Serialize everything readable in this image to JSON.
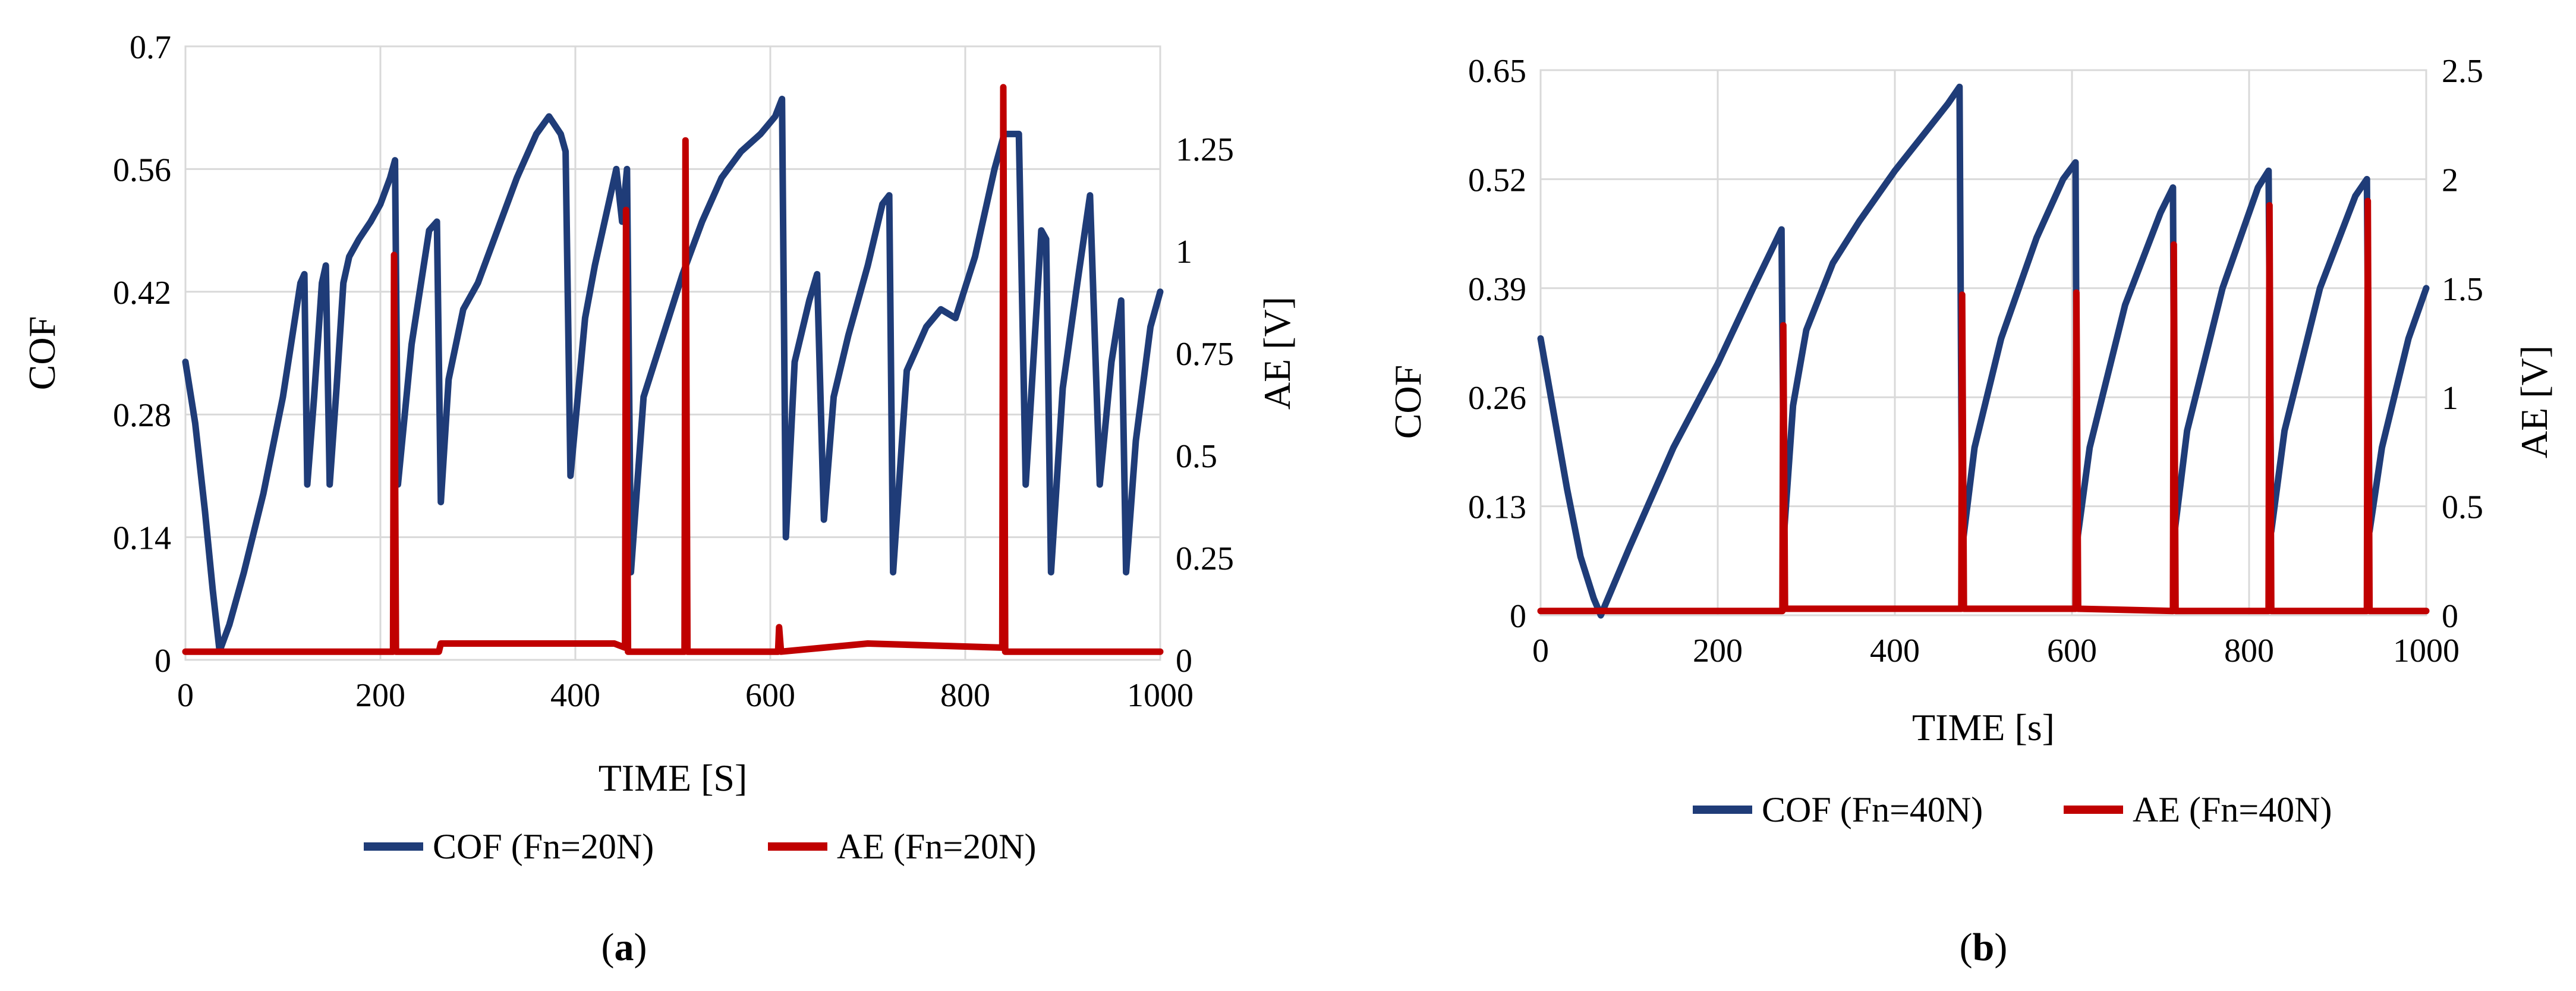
{
  "panels": [
    {
      "label_open": "(",
      "label_letter": "a",
      "label_close": ")"
    },
    {
      "label_open": "(",
      "label_letter": "b",
      "label_close": ")"
    }
  ],
  "chart_data": [
    {
      "type": "line",
      "title": "",
      "xlabel": "TIME [S]",
      "ylabel": "COF",
      "y2label": "AE [V]",
      "xlim": [
        0,
        1000
      ],
      "ylim": [
        0,
        0.7
      ],
      "y2lim": [
        0,
        1.5
      ],
      "xticks": [
        "0",
        "200",
        "400",
        "600",
        "800",
        "1000"
      ],
      "yticks": [
        "0",
        "0.14",
        "0.28",
        "0.42",
        "0.56",
        "0.7"
      ],
      "y2ticks": [
        "0",
        "0.25",
        "0.5",
        "0.75",
        "1",
        "1.25"
      ],
      "grid": true,
      "legend": "bottom",
      "series": [
        {
          "name": "COF (Fn=20N)",
          "axis": "left",
          "color": "#1f3c78",
          "points": [
            [
              0,
              0.34
            ],
            [
              10,
              0.27
            ],
            [
              20,
              0.17
            ],
            [
              28,
              0.08
            ],
            [
              35,
              0.01
            ],
            [
              45,
              0.04
            ],
            [
              60,
              0.1
            ],
            [
              80,
              0.19
            ],
            [
              100,
              0.3
            ],
            [
              118,
              0.43
            ],
            [
              122,
              0.44
            ],
            [
              125,
              0.2
            ],
            [
              132,
              0.3
            ],
            [
              140,
              0.43
            ],
            [
              144,
              0.45
            ],
            [
              148,
              0.2
            ],
            [
              155,
              0.31
            ],
            [
              162,
              0.43
            ],
            [
              168,
              0.46
            ],
            [
              178,
              0.48
            ],
            [
              190,
              0.5
            ],
            [
              200,
              0.52
            ],
            [
              210,
              0.55
            ],
            [
              215,
              0.57
            ],
            [
              218,
              0.2
            ],
            [
              232,
              0.36
            ],
            [
              250,
              0.49
            ],
            [
              258,
              0.5
            ],
            [
              262,
              0.18
            ],
            [
              270,
              0.32
            ],
            [
              285,
              0.4
            ],
            [
              300,
              0.43
            ],
            [
              320,
              0.49
            ],
            [
              340,
              0.55
            ],
            [
              360,
              0.6
            ],
            [
              373,
              0.62
            ],
            [
              385,
              0.6
            ],
            [
              390,
              0.58
            ],
            [
              395,
              0.21
            ],
            [
              410,
              0.39
            ],
            [
              420,
              0.45
            ],
            [
              432,
              0.51
            ],
            [
              442,
              0.56
            ],
            [
              448,
              0.5
            ],
            [
              453,
              0.56
            ],
            [
              457,
              0.1
            ],
            [
              470,
              0.3
            ],
            [
              490,
              0.37
            ],
            [
              510,
              0.44
            ],
            [
              530,
              0.5
            ],
            [
              550,
              0.55
            ],
            [
              570,
              0.58
            ],
            [
              590,
              0.6
            ],
            [
              605,
              0.62
            ],
            [
              612,
              0.64
            ],
            [
              616,
              0.14
            ],
            [
              625,
              0.34
            ],
            [
              640,
              0.41
            ],
            [
              648,
              0.44
            ],
            [
              655,
              0.16
            ],
            [
              665,
              0.3
            ],
            [
              680,
              0.37
            ],
            [
              700,
              0.45
            ],
            [
              715,
              0.52
            ],
            [
              722,
              0.53
            ],
            [
              726,
              0.1
            ],
            [
              740,
              0.33
            ],
            [
              760,
              0.38
            ],
            [
              775,
              0.4
            ],
            [
              790,
              0.39
            ],
            [
              810,
              0.46
            ],
            [
              830,
              0.56
            ],
            [
              840,
              0.6
            ],
            [
              848,
              0.6
            ],
            [
              855,
              0.6
            ],
            [
              862,
              0.2
            ],
            [
              872,
              0.38
            ],
            [
              878,
              0.49
            ],
            [
              883,
              0.48
            ],
            [
              888,
              0.1
            ],
            [
              900,
              0.31
            ],
            [
              915,
              0.43
            ],
            [
              928,
              0.53
            ],
            [
              938,
              0.2
            ],
            [
              950,
              0.34
            ],
            [
              960,
              0.41
            ],
            [
              965,
              0.1
            ],
            [
              975,
              0.25
            ],
            [
              990,
              0.38
            ],
            [
              1000,
              0.42
            ]
          ]
        },
        {
          "name": "AE (Fn=20N)",
          "axis": "right",
          "color": "#c00000",
          "points": [
            [
              0,
              0.02
            ],
            [
              100,
              0.02
            ],
            [
              213,
              0.02
            ],
            [
              214,
              0.99
            ],
            [
              216,
              0.02
            ],
            [
              260,
              0.02
            ],
            [
              262,
              0.04
            ],
            [
              440,
              0.04
            ],
            [
              451,
              0.03
            ],
            [
              452,
              1.1
            ],
            [
              454,
              0.02
            ],
            [
              512,
              0.02
            ],
            [
              513,
              1.27
            ],
            [
              515,
              0.02
            ],
            [
              608,
              0.02
            ],
            [
              609,
              0.08
            ],
            [
              611,
              0.02
            ],
            [
              700,
              0.04
            ],
            [
              838,
              0.03
            ],
            [
              839,
              1.4
            ],
            [
              841,
              0.02
            ],
            [
              1000,
              0.02
            ]
          ]
        }
      ]
    },
    {
      "type": "line",
      "title": "",
      "xlabel": "TIME [s]",
      "ylabel": "COF",
      "y2label": "AE [V]",
      "xlim": [
        0,
        1000
      ],
      "ylim": [
        0,
        0.65
      ],
      "y2lim": [
        0,
        2.5
      ],
      "xticks": [
        "0",
        "200",
        "400",
        "600",
        "800",
        "1000"
      ],
      "yticks": [
        "0",
        "0.13",
        "0.26",
        "0.39",
        "0.52",
        "0.65"
      ],
      "y2ticks": [
        "0",
        "0.5",
        "1",
        "1.5",
        "2",
        "2.5"
      ],
      "grid": true,
      "legend": "bottom",
      "series": [
        {
          "name": "COF (Fn=40N)",
          "axis": "left",
          "color": "#1f3c78",
          "points": [
            [
              0,
              0.33
            ],
            [
              15,
              0.24
            ],
            [
              30,
              0.15
            ],
            [
              45,
              0.07
            ],
            [
              60,
              0.02
            ],
            [
              68,
              0.0
            ],
            [
              80,
              0.03
            ],
            [
              100,
              0.08
            ],
            [
              150,
              0.2
            ],
            [
              200,
              0.3
            ],
            [
              240,
              0.39
            ],
            [
              272,
              0.46
            ],
            [
              275,
              0.1
            ],
            [
              285,
              0.25
            ],
            [
              300,
              0.34
            ],
            [
              330,
              0.42
            ],
            [
              360,
              0.47
            ],
            [
              400,
              0.53
            ],
            [
              430,
              0.57
            ],
            [
              460,
              0.61
            ],
            [
              473,
              0.63
            ],
            [
              476,
              0.08
            ],
            [
              490,
              0.2
            ],
            [
              520,
              0.33
            ],
            [
              560,
              0.45
            ],
            [
              590,
              0.52
            ],
            [
              604,
              0.54
            ],
            [
              606,
              0.09
            ],
            [
              620,
              0.2
            ],
            [
              660,
              0.37
            ],
            [
              700,
              0.48
            ],
            [
              714,
              0.51
            ],
            [
              716,
              0.1
            ],
            [
              730,
              0.22
            ],
            [
              770,
              0.39
            ],
            [
              810,
              0.51
            ],
            [
              822,
              0.53
            ],
            [
              825,
              0.1
            ],
            [
              840,
              0.22
            ],
            [
              880,
              0.39
            ],
            [
              920,
              0.5
            ],
            [
              933,
              0.52
            ],
            [
              936,
              0.1
            ],
            [
              950,
              0.2
            ],
            [
              980,
              0.33
            ],
            [
              1000,
              0.39
            ]
          ]
        },
        {
          "name": "AE (Fn=40N)",
          "axis": "right",
          "color": "#c00000",
          "points": [
            [
              0,
              0.02
            ],
            [
              273,
              0.02
            ],
            [
              274,
              1.33
            ],
            [
              276,
              0.03
            ],
            [
              475,
              0.03
            ],
            [
              476,
              1.47
            ],
            [
              478,
              0.03
            ],
            [
              604,
              0.03
            ],
            [
              605,
              1.48
            ],
            [
              607,
              0.03
            ],
            [
              714,
              0.02
            ],
            [
              715,
              1.7
            ],
            [
              717,
              0.02
            ],
            [
              822,
              0.02
            ],
            [
              823,
              1.88
            ],
            [
              825,
              0.02
            ],
            [
              933,
              0.02
            ],
            [
              934,
              1.9
            ],
            [
              936,
              0.02
            ],
            [
              1000,
              0.02
            ]
          ]
        }
      ]
    }
  ]
}
